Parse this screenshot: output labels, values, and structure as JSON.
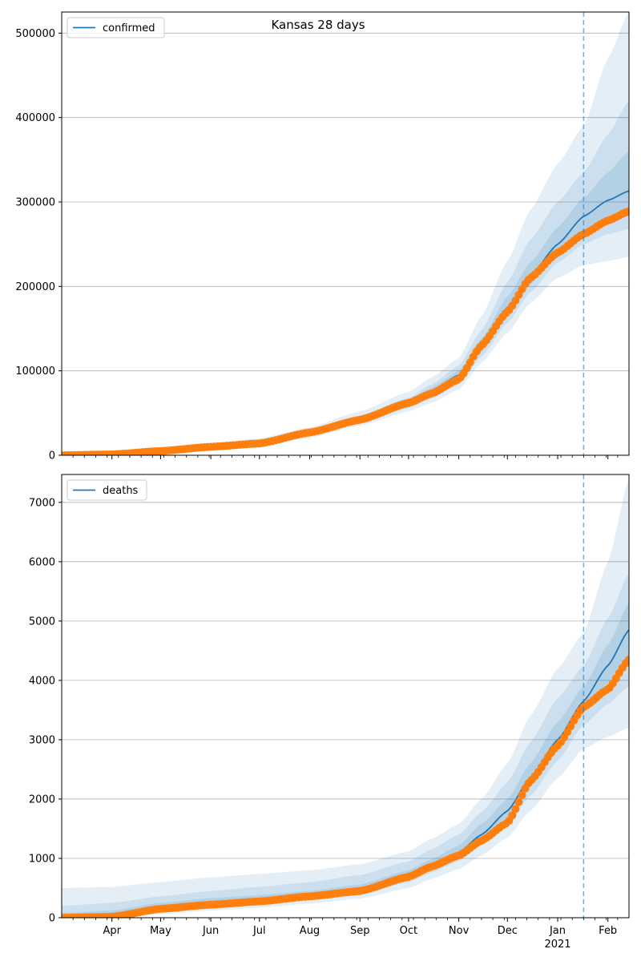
{
  "chart_data": [
    {
      "type": "line",
      "title": "Kansas 28 days",
      "legend": {
        "label": "confirmed",
        "placement": "top-left"
      },
      "xlabel": "",
      "ylabel": "",
      "xlim": [
        "2020-03-01",
        "2021-02-14"
      ],
      "ylim": [
        0,
        525000
      ],
      "yticks": [
        0,
        100000,
        200000,
        300000,
        400000,
        500000
      ],
      "ytick_labels": [
        "0",
        "100000",
        "200000",
        "300000",
        "400000",
        "500000"
      ],
      "grid": "horizontal",
      "forecast_start": "2021-01-17",
      "colors": {
        "line": "#1f77b4",
        "points": "#ff7f0e",
        "band": "#1f77b4",
        "grid": "#b0b0b0"
      },
      "series": [
        {
          "name": "confirmed",
          "kind": "model-median",
          "x": [
            "2020-03-01",
            "2020-04-01",
            "2020-05-01",
            "2020-06-01",
            "2020-07-01",
            "2020-08-01",
            "2020-09-01",
            "2020-10-01",
            "2020-10-15",
            "2020-11-01",
            "2020-11-15",
            "2020-12-01",
            "2020-12-15",
            "2021-01-01",
            "2021-01-17",
            "2021-02-01",
            "2021-02-14"
          ],
          "y": [
            0,
            1500,
            5000,
            10000,
            15000,
            27000,
            43000,
            62000,
            76000,
            95000,
            130000,
            175000,
            212000,
            250000,
            283000,
            302000,
            313000
          ]
        },
        {
          "name": "observed",
          "kind": "observed-points",
          "x": [
            "2020-03-01",
            "2020-04-01",
            "2020-05-01",
            "2020-06-01",
            "2020-07-01",
            "2020-08-01",
            "2020-09-01",
            "2020-10-01",
            "2020-10-15",
            "2020-11-01",
            "2020-11-15",
            "2020-12-01",
            "2020-12-15",
            "2021-01-01",
            "2021-01-17",
            "2021-02-01",
            "2021-02-14"
          ],
          "y": [
            0,
            1000,
            5000,
            10000,
            14000,
            27000,
            42000,
            62000,
            73000,
            90000,
            130000,
            170000,
            210000,
            240000,
            262000,
            278000,
            289000
          ]
        }
      ],
      "bands": [
        {
          "level": "outer",
          "lower": [
            0,
            0,
            2000,
            7000,
            10000,
            21000,
            35000,
            52000,
            62000,
            78000,
            110000,
            145000,
            180000,
            210000,
            225000,
            230000,
            235000
          ],
          "upper": [
            1000,
            3000,
            8000,
            13000,
            20000,
            33000,
            52000,
            75000,
            92000,
            115000,
            165000,
            230000,
            290000,
            345000,
            390000,
            470000,
            525000
          ]
        },
        {
          "level": "middle",
          "lower": [
            0,
            1000,
            3000,
            8000,
            12000,
            23000,
            38000,
            56000,
            67000,
            84000,
            117000,
            157000,
            193000,
            228000,
            250000,
            262000,
            268000
          ],
          "upper": [
            500,
            2000,
            6000,
            11000,
            17000,
            30000,
            47000,
            68000,
            84000,
            106000,
            148000,
            205000,
            255000,
            300000,
            335000,
            380000,
            420000
          ]
        },
        {
          "level": "inner",
          "lower": [
            0,
            1200,
            4000,
            9000,
            13000,
            25000,
            40000,
            59000,
            71000,
            89000,
            124000,
            166000,
            202000,
            240000,
            266000,
            278000,
            283000
          ],
          "upper": [
            200,
            1700,
            5500,
            10500,
            16000,
            28500,
            45000,
            65000,
            80000,
            100000,
            138000,
            188000,
            228000,
            270000,
            305000,
            335000,
            360000
          ]
        }
      ]
    },
    {
      "type": "line",
      "title": "",
      "legend": {
        "label": "deaths",
        "placement": "top-left"
      },
      "xlabel": "",
      "ylabel": "",
      "xlim": [
        "2020-03-01",
        "2021-02-14"
      ],
      "ylim": [
        0,
        7470
      ],
      "yticks": [
        0,
        1000,
        2000,
        3000,
        4000,
        5000,
        6000,
        7000
      ],
      "ytick_labels": [
        "0",
        "1000",
        "2000",
        "3000",
        "4000",
        "5000",
        "6000",
        "7000"
      ],
      "xticks": [
        "2020-04-01",
        "2020-05-01",
        "2020-06-01",
        "2020-07-01",
        "2020-08-01",
        "2020-09-01",
        "2020-10-01",
        "2020-11-01",
        "2020-12-01",
        "2021-01-01",
        "2021-02-01"
      ],
      "xtick_labels": [
        "Apr",
        "May",
        "Jun",
        "Jul",
        "Aug",
        "Sep",
        "Oct",
        "Nov",
        "Dec",
        "Jan",
        "Feb"
      ],
      "x_year_label": {
        "date": "2021-01-01",
        "text": "2021"
      },
      "grid": "horizontal",
      "forecast_start": "2021-01-17",
      "colors": {
        "line": "#1f77b4",
        "points": "#ff7f0e",
        "band": "#1f77b4",
        "grid": "#b0b0b0"
      },
      "series": [
        {
          "name": "deaths",
          "kind": "model-median",
          "x": [
            "2020-03-01",
            "2020-04-01",
            "2020-05-01",
            "2020-06-01",
            "2020-07-01",
            "2020-08-01",
            "2020-09-01",
            "2020-10-01",
            "2020-10-15",
            "2020-11-01",
            "2020-11-15",
            "2020-12-01",
            "2020-12-15",
            "2021-01-01",
            "2021-01-17",
            "2021-02-01",
            "2021-02-14"
          ],
          "y": [
            0,
            20,
            160,
            230,
            280,
            360,
            460,
            700,
            880,
            1100,
            1400,
            1800,
            2350,
            3000,
            3650,
            4250,
            4850
          ]
        },
        {
          "name": "observed",
          "kind": "observed-points",
          "x": [
            "2020-03-01",
            "2020-04-01",
            "2020-05-01",
            "2020-06-01",
            "2020-07-01",
            "2020-08-01",
            "2020-09-01",
            "2020-10-01",
            "2020-10-15",
            "2020-11-01",
            "2020-11-15",
            "2020-12-01",
            "2020-12-15",
            "2021-01-01",
            "2021-01-17",
            "2021-02-01",
            "2021-02-14"
          ],
          "y": [
            0,
            15,
            150,
            220,
            275,
            360,
            450,
            690,
            860,
            1050,
            1300,
            1600,
            2300,
            2900,
            3550,
            3850,
            4350
          ]
        }
      ],
      "bands": [
        {
          "level": "outer",
          "lower": [
            0,
            0,
            60,
            120,
            170,
            240,
            320,
            500,
            650,
            820,
            1050,
            1350,
            1800,
            2350,
            2850,
            3050,
            3200
          ],
          "upper": [
            500,
            520,
            600,
            680,
            740,
            800,
            900,
            1120,
            1330,
            1580,
            2000,
            2600,
            3400,
            4200,
            4800,
            6000,
            7400
          ]
        },
        {
          "level": "middle",
          "lower": [
            0,
            0,
            100,
            170,
            220,
            300,
            390,
            600,
            760,
            950,
            1220,
            1560,
            2050,
            2650,
            3250,
            3600,
            3900
          ],
          "upper": [
            200,
            250,
            360,
            450,
            520,
            600,
            720,
            950,
            1150,
            1400,
            1780,
            2280,
            2950,
            3700,
            4250,
            5050,
            5800
          ]
        },
        {
          "level": "inner",
          "lower": [
            0,
            5,
            130,
            200,
            255,
            340,
            430,
            660,
            830,
            1040,
            1330,
            1700,
            2220,
            2850,
            3500,
            3950,
            4400
          ],
          "upper": [
            80,
            120,
            250,
            330,
            380,
            450,
            560,
            800,
            980,
            1220,
            1580,
            2000,
            2600,
            3300,
            3900,
            4600,
            5300
          ]
        }
      ]
    }
  ]
}
